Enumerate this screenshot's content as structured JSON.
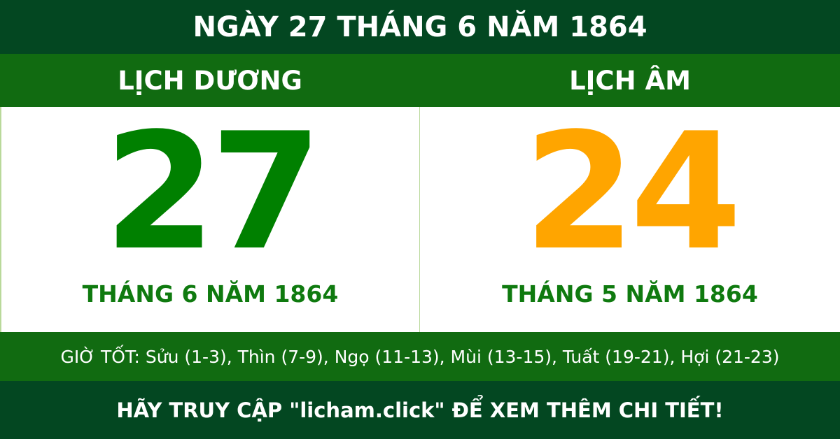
{
  "title": "NGÀY 27 THÁNG 6 NĂM 1864",
  "solar": {
    "heading": "LỊCH DƯƠNG",
    "day": "27",
    "month_year": "THÁNG 6 NĂM 1864",
    "color": "#008000"
  },
  "lunar": {
    "heading": "LỊCH ÂM",
    "day": "24",
    "month_year": "THÁNG 5 NĂM 1864",
    "color": "#ffa500"
  },
  "good_hours": "GIỜ TỐT: Sửu (1-3), Thìn (7-9), Ngọ (11-13), Mùi (13-15), Tuất (19-21), Hợi (21-23)",
  "footer": "HÃY TRUY CẬP \"licham.click\" ĐỂ XEM THÊM CHI TIẾT!",
  "colors": {
    "dark_green": "#034721",
    "green": "#116b11"
  }
}
